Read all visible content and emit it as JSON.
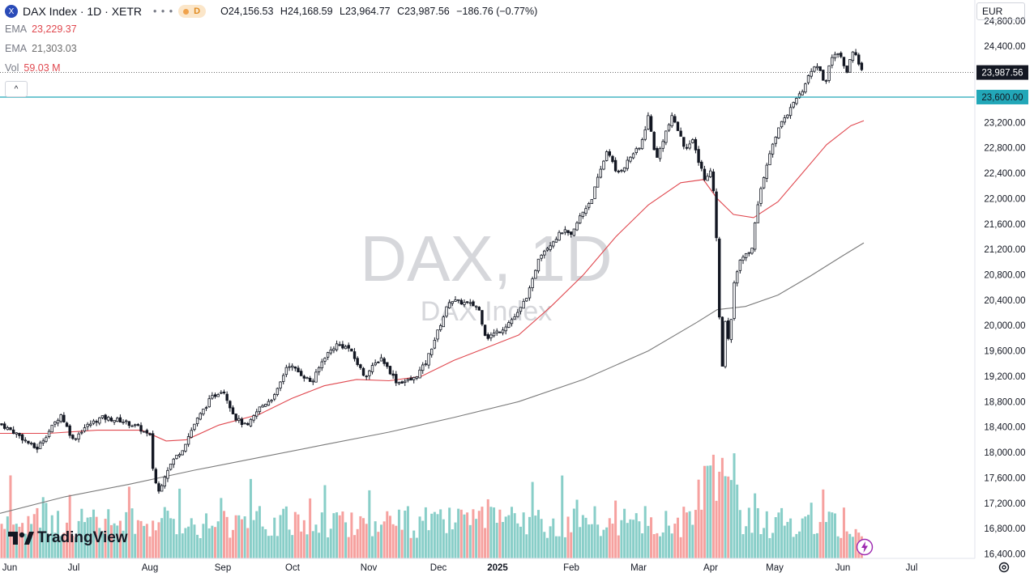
{
  "header": {
    "symbol_icon": "X",
    "title": "DAX Index · 1D · XETR",
    "dots": "• • •",
    "interval_badge": "D",
    "ohlc": {
      "o_label": "O",
      "o": "24,156.53",
      "h_label": "H",
      "h": "24,168.59",
      "l_label": "L",
      "l": "23,964.77",
      "c_label": "C",
      "c": "23,987.56",
      "change": "−186.76 (−0.77%)"
    }
  },
  "indicators": [
    {
      "name": "EMA",
      "value": "23,229.37",
      "color": "#e0484f"
    },
    {
      "name": "EMA",
      "value": "21,303.03",
      "color": "#6e6e6e"
    },
    {
      "name": "Vol",
      "value": "59.03 M",
      "color": "#e0484f"
    }
  ],
  "collapse_label": "^",
  "currency": "EUR",
  "watermark": {
    "main": "DAX, 1D",
    "sub": "DAX Index"
  },
  "brand": "TradingView",
  "icons": {
    "logo": "tradingview-logo-icon",
    "settings": "gear-icon",
    "bolt": "lightning-icon"
  },
  "colors": {
    "up": "#26a69a",
    "down": "#ef5350",
    "ema_short": "#e0484f",
    "ema_long": "#7a7a7a",
    "hline": "#22a7b8"
  },
  "chart_data": {
    "type": "candlestick",
    "y_axis_ticks": [
      "24,800.00",
      "24,400.00",
      "24,000.00",
      "23,600.00",
      "23,200.00",
      "22,800.00",
      "22,400.00",
      "22,000.00",
      "21,600.00",
      "21,200.00",
      "20,800.00",
      "20,400.00",
      "20,000.00",
      "19,600.00",
      "19,200.00",
      "18,800.00",
      "18,400.00",
      "18,000.00",
      "17,600.00",
      "17,200.00",
      "16,800.00",
      "16,400.00"
    ],
    "y_axis_tick_values": [
      24800,
      24400,
      24000,
      23600,
      23200,
      22800,
      22400,
      22000,
      21600,
      21200,
      20800,
      20400,
      20000,
      19600,
      19200,
      18800,
      18400,
      18000,
      17600,
      17200,
      16800,
      16400
    ],
    "ylim": [
      16330,
      25130
    ],
    "x_axis_labels": [
      "Jun",
      "Jul",
      "Aug",
      "Sep",
      "Oct",
      "Nov",
      "Dec",
      "2025",
      "Feb",
      "Mar",
      "Apr",
      "May",
      "Jun",
      "Jul"
    ],
    "price_axis_labels": {
      "last_price": {
        "value": 23987.56,
        "label": "23,987.56"
      },
      "horizontal_line": {
        "value": 23600,
        "label": "23,600.00"
      }
    },
    "close_anchors": [
      [
        0,
        18450
      ],
      [
        20,
        18300
      ],
      [
        45,
        18050
      ],
      [
        75,
        18600
      ],
      [
        90,
        18200
      ],
      [
        105,
        18400
      ],
      [
        125,
        18550
      ],
      [
        150,
        18500
      ],
      [
        170,
        18400
      ],
      [
        185,
        18250
      ],
      [
        188,
        17800
      ],
      [
        195,
        17350
      ],
      [
        205,
        17700
      ],
      [
        215,
        17900
      ],
      [
        225,
        18050
      ],
      [
        240,
        18450
      ],
      [
        260,
        18850
      ],
      [
        275,
        19000
      ],
      [
        290,
        18550
      ],
      [
        305,
        18400
      ],
      [
        320,
        18700
      ],
      [
        340,
        18900
      ],
      [
        355,
        19400
      ],
      [
        370,
        19250
      ],
      [
        385,
        19100
      ],
      [
        400,
        19500
      ],
      [
        415,
        19700
      ],
      [
        430,
        19650
      ],
      [
        450,
        19200
      ],
      [
        470,
        19500
      ],
      [
        490,
        19100
      ],
      [
        510,
        19150
      ],
      [
        525,
        19400
      ],
      [
        540,
        19900
      ],
      [
        555,
        20400
      ],
      [
        575,
        20350
      ],
      [
        590,
        20300
      ],
      [
        600,
        19800
      ],
      [
        620,
        19950
      ],
      [
        640,
        20200
      ],
      [
        655,
        20600
      ],
      [
        665,
        21100
      ],
      [
        680,
        21300
      ],
      [
        695,
        21500
      ],
      [
        705,
        21400
      ],
      [
        715,
        21700
      ],
      [
        730,
        22000
      ],
      [
        740,
        22400
      ],
      [
        750,
        22800
      ],
      [
        760,
        22400
      ],
      [
        770,
        22500
      ],
      [
        780,
        22700
      ],
      [
        790,
        22800
      ],
      [
        800,
        23300
      ],
      [
        810,
        22600
      ],
      [
        820,
        23000
      ],
      [
        830,
        23300
      ],
      [
        845,
        22800
      ],
      [
        855,
        22900
      ],
      [
        862,
        22600
      ],
      [
        870,
        22300
      ],
      [
        878,
        22500
      ],
      [
        882,
        21900
      ],
      [
        886,
        20900
      ],
      [
        890,
        19100
      ],
      [
        895,
        20100
      ],
      [
        900,
        19700
      ],
      [
        905,
        20600
      ],
      [
        912,
        21000
      ],
      [
        920,
        21100
      ],
      [
        928,
        21200
      ],
      [
        933,
        21800
      ],
      [
        940,
        22200
      ],
      [
        950,
        22700
      ],
      [
        960,
        23100
      ],
      [
        970,
        23300
      ],
      [
        980,
        23500
      ],
      [
        990,
        23700
      ],
      [
        1000,
        24000
      ],
      [
        1010,
        24100
      ],
      [
        1018,
        23800
      ],
      [
        1025,
        24200
      ],
      [
        1035,
        24300
      ],
      [
        1045,
        24000
      ],
      [
        1052,
        24300
      ],
      [
        1058,
        24200
      ],
      [
        1066,
        23990
      ]
    ],
    "ema_short": [
      [
        0,
        18300
      ],
      [
        60,
        18300
      ],
      [
        120,
        18350
      ],
      [
        175,
        18350
      ],
      [
        205,
        18180
      ],
      [
        230,
        18200
      ],
      [
        270,
        18430
      ],
      [
        320,
        18600
      ],
      [
        360,
        18850
      ],
      [
        400,
        19050
      ],
      [
        440,
        19150
      ],
      [
        480,
        19130
      ],
      [
        520,
        19200
      ],
      [
        560,
        19450
      ],
      [
        600,
        19650
      ],
      [
        640,
        19850
      ],
      [
        680,
        20300
      ],
      [
        720,
        20800
      ],
      [
        760,
        21400
      ],
      [
        800,
        21900
      ],
      [
        840,
        22250
      ],
      [
        868,
        22300
      ],
      [
        885,
        22000
      ],
      [
        905,
        21750
      ],
      [
        930,
        21700
      ],
      [
        960,
        21950
      ],
      [
        990,
        22400
      ],
      [
        1020,
        22850
      ],
      [
        1050,
        23150
      ],
      [
        1066,
        23229
      ]
    ],
    "ema_long": [
      [
        0,
        17040
      ],
      [
        80,
        17300
      ],
      [
        160,
        17500
      ],
      [
        240,
        17720
      ],
      [
        320,
        17920
      ],
      [
        400,
        18120
      ],
      [
        480,
        18320
      ],
      [
        560,
        18550
      ],
      [
        640,
        18800
      ],
      [
        720,
        19150
      ],
      [
        800,
        19600
      ],
      [
        860,
        20050
      ],
      [
        885,
        20250
      ],
      [
        920,
        20300
      ],
      [
        960,
        20480
      ],
      [
        1000,
        20780
      ],
      [
        1040,
        21100
      ],
      [
        1066,
        21303
      ]
    ]
  }
}
